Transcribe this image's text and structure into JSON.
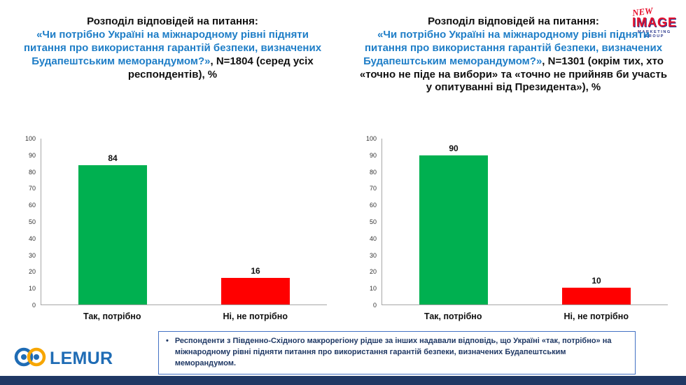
{
  "page": {
    "bg": "#ffffff",
    "bottom_bar_color": "#203864"
  },
  "logos": {
    "lemur": {
      "text": "LEMUR",
      "color": "#1F6CB5"
    },
    "new_image": {
      "line1": "NEW",
      "line2": "IMAGE",
      "line3": "MARKETING GROUP"
    }
  },
  "footnote": {
    "bullet": "•",
    "text": "Респонденти з Південно-Східного макрорегіону рідше за інших надавали відповідь, що Україні «так, потрібно» на міжнародному рівні підняти питання про використання гарантій безпеки, визначених Будапештським меморандумом."
  },
  "chart_data": [
    {
      "type": "bar",
      "title_black": "Розподіл відповідей на питання:",
      "title_blue": "«Чи потрібно Україні на міжнародному рівні підняти питання про використання гарантій безпеки, визначених Будапештським меморандумом?»",
      "title_suffix": ", N=1804 (серед усіх респондентів), %",
      "categories": [
        "Так, потрібно",
        "Ні, не потрібно"
      ],
      "values": [
        84,
        16
      ],
      "colors": [
        "#00B050",
        "#FF0000"
      ],
      "ylim": [
        0,
        100
      ],
      "ytick_step": 10,
      "grid": false,
      "legend": "none"
    },
    {
      "type": "bar",
      "title_black": "Розподіл відповідей на питання:",
      "title_blue": "«Чи потрібно Україні на міжнародному рівні підняти питання про використання гарантій безпеки, визначених Будапештським меморандумом?»",
      "title_suffix": ", N=1301 (окрім тих, хто «точно не піде на вибори» та «точно не прийняв би участь у опитуванні від Президента»), %",
      "categories": [
        "Так, потрібно",
        "Ні, не потрібно"
      ],
      "values": [
        90,
        10
      ],
      "colors": [
        "#00B050",
        "#FF0000"
      ],
      "ylim": [
        0,
        100
      ],
      "ytick_step": 10,
      "grid": false,
      "legend": "none"
    }
  ]
}
